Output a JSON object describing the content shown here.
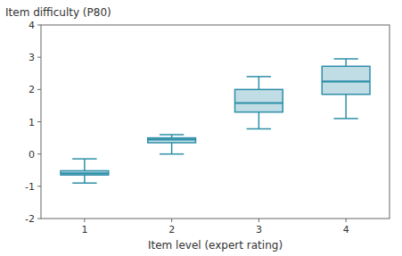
{
  "chart_data": {
    "type": "box",
    "xlabel": "Item level (expert rating)",
    "ylabel": "Item difficulty (P80)",
    "x": [
      1,
      2,
      3,
      4
    ],
    "whisker_low": [
      -0.9,
      0.0,
      0.78,
      1.1
    ],
    "q1": [
      -0.65,
      0.35,
      1.3,
      1.85
    ],
    "median": [
      -0.6,
      0.45,
      1.58,
      2.25
    ],
    "q3": [
      -0.52,
      0.5,
      2.0,
      2.72
    ],
    "whisker_high": [
      -0.15,
      0.6,
      2.4,
      2.95
    ],
    "xlim": [
      0.5,
      4.5
    ],
    "xticks": [
      1,
      2,
      3,
      4
    ],
    "ylim": [
      -2,
      4
    ],
    "yticks": [
      -2,
      -1,
      0,
      1,
      2,
      3,
      4
    ],
    "color": "#2E8FA8",
    "grid": false
  }
}
